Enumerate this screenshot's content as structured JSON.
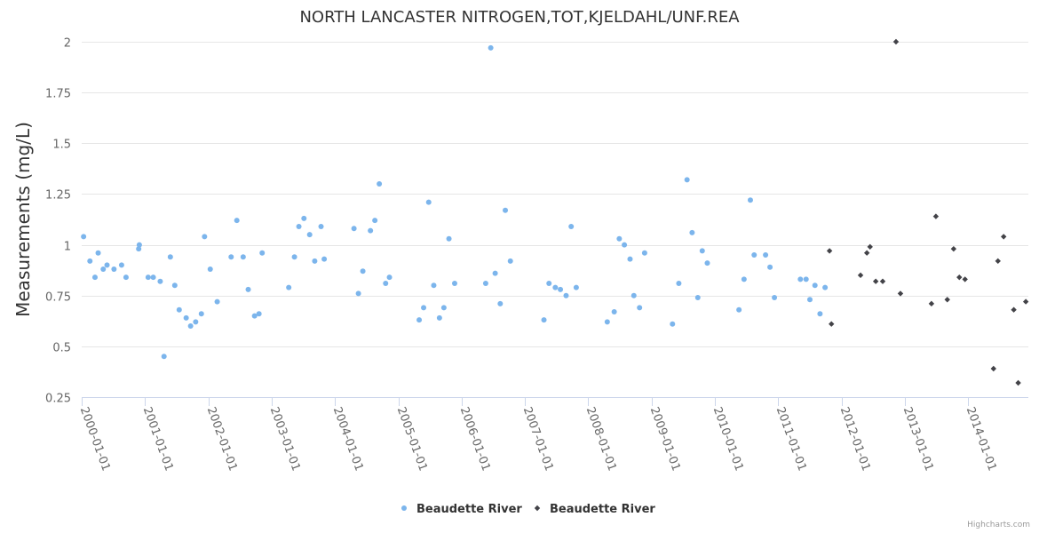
{
  "chart_data": {
    "type": "scatter",
    "title": "NORTH LANCASTER NITROGEN,TOT,KJELDAHL/UNF.REA",
    "ylabel": "Measurements (mg/L)",
    "xlabel": "",
    "ylim": [
      0.25,
      2.0
    ],
    "yticks": [
      0.25,
      0.5,
      0.75,
      1.0,
      1.25,
      1.5,
      1.75,
      2.0
    ],
    "ytick_labels": [
      "0.25",
      "0.5",
      "0.75",
      "1",
      "1.25",
      "1.5",
      "1.75",
      "2"
    ],
    "xlim": [
      2000.0,
      2014.95
    ],
    "xticks": [
      2000,
      2001,
      2002,
      2003,
      2004,
      2005,
      2006,
      2007,
      2008,
      2009,
      2010,
      2011,
      2012,
      2013,
      2014
    ],
    "xtick_labels": [
      "2000-01-01",
      "2001-01-01",
      "2002-01-01",
      "2003-01-01",
      "2004-01-01",
      "2005-01-01",
      "2006-01-01",
      "2007-01-01",
      "2008-01-01",
      "2009-01-01",
      "2010-01-01",
      "2011-01-01",
      "2012-01-01",
      "2013-01-01",
      "2014-01-01"
    ],
    "grid": true,
    "legend_position": "bottom-center",
    "series": [
      {
        "name": "Beaudette River",
        "marker": "circle",
        "color": "#7cb5ec",
        "points": [
          [
            2000.03,
            1.04
          ],
          [
            2000.13,
            0.92
          ],
          [
            2000.21,
            0.84
          ],
          [
            2000.26,
            0.96
          ],
          [
            2000.34,
            0.88
          ],
          [
            2000.4,
            0.9
          ],
          [
            2000.51,
            0.88
          ],
          [
            2000.63,
            0.9
          ],
          [
            2000.7,
            0.84
          ],
          [
            2000.9,
            0.98
          ],
          [
            2000.91,
            1.0
          ],
          [
            2001.05,
            0.84
          ],
          [
            2001.13,
            0.84
          ],
          [
            2001.24,
            0.82
          ],
          [
            2001.3,
            0.45
          ],
          [
            2001.4,
            0.94
          ],
          [
            2001.47,
            0.8
          ],
          [
            2001.54,
            0.68
          ],
          [
            2001.65,
            0.64
          ],
          [
            2001.72,
            0.6
          ],
          [
            2001.8,
            0.62
          ],
          [
            2001.89,
            0.66
          ],
          [
            2001.94,
            1.04
          ],
          [
            2002.03,
            0.88
          ],
          [
            2002.14,
            0.72
          ],
          [
            2002.36,
            0.94
          ],
          [
            2002.45,
            1.12
          ],
          [
            2002.55,
            0.94
          ],
          [
            2002.63,
            0.78
          ],
          [
            2002.73,
            0.65
          ],
          [
            2002.8,
            0.66
          ],
          [
            2002.85,
            0.96
          ],
          [
            2003.27,
            0.79
          ],
          [
            2003.36,
            0.94
          ],
          [
            2003.43,
            1.09
          ],
          [
            2003.51,
            1.13
          ],
          [
            2003.6,
            1.05
          ],
          [
            2003.68,
            0.92
          ],
          [
            2003.78,
            1.09
          ],
          [
            2003.83,
            0.93
          ],
          [
            2004.3,
            1.08
          ],
          [
            2004.37,
            0.76
          ],
          [
            2004.44,
            0.87
          ],
          [
            2004.56,
            1.07
          ],
          [
            2004.63,
            1.12
          ],
          [
            2004.7,
            1.3
          ],
          [
            2004.8,
            0.81
          ],
          [
            2004.86,
            0.84
          ],
          [
            2005.33,
            0.63
          ],
          [
            2005.4,
            0.69
          ],
          [
            2005.48,
            1.21
          ],
          [
            2005.56,
            0.8
          ],
          [
            2005.65,
            0.64
          ],
          [
            2005.72,
            0.69
          ],
          [
            2005.8,
            1.03
          ],
          [
            2005.89,
            0.81
          ],
          [
            2006.38,
            0.81
          ],
          [
            2006.46,
            1.97
          ],
          [
            2006.53,
            0.86
          ],
          [
            2006.61,
            0.71
          ],
          [
            2006.69,
            1.17
          ],
          [
            2006.77,
            0.92
          ],
          [
            2007.3,
            0.63
          ],
          [
            2007.38,
            0.81
          ],
          [
            2007.48,
            0.79
          ],
          [
            2007.56,
            0.78
          ],
          [
            2007.65,
            0.75
          ],
          [
            2007.73,
            1.09
          ],
          [
            2007.81,
            0.79
          ],
          [
            2008.3,
            0.62
          ],
          [
            2008.41,
            0.67
          ],
          [
            2008.49,
            1.03
          ],
          [
            2008.57,
            1.0
          ],
          [
            2008.66,
            0.93
          ],
          [
            2008.72,
            0.75
          ],
          [
            2008.81,
            0.69
          ],
          [
            2008.89,
            0.96
          ],
          [
            2009.33,
            0.61
          ],
          [
            2009.43,
            0.81
          ],
          [
            2009.56,
            1.32
          ],
          [
            2009.64,
            1.06
          ],
          [
            2009.73,
            0.74
          ],
          [
            2009.8,
            0.97
          ],
          [
            2009.88,
            0.91
          ],
          [
            2010.38,
            0.68
          ],
          [
            2010.46,
            0.83
          ],
          [
            2010.56,
            1.22
          ],
          [
            2010.62,
            0.95
          ],
          [
            2010.8,
            0.95
          ],
          [
            2010.87,
            0.89
          ],
          [
            2010.94,
            0.74
          ],
          [
            2011.35,
            0.83
          ],
          [
            2011.44,
            0.83
          ],
          [
            2011.5,
            0.73
          ],
          [
            2011.58,
            0.8
          ],
          [
            2011.66,
            0.66
          ],
          [
            2011.74,
            0.79
          ]
        ]
      },
      {
        "name": "Beaudette River",
        "marker": "diamond",
        "color": "#434348",
        "points": [
          [
            2011.81,
            0.97
          ],
          [
            2011.84,
            0.61
          ],
          [
            2012.3,
            0.85
          ],
          [
            2012.4,
            0.96
          ],
          [
            2012.45,
            0.99
          ],
          [
            2012.54,
            0.82
          ],
          [
            2012.65,
            0.82
          ],
          [
            2012.86,
            2.0
          ],
          [
            2012.93,
            0.76
          ],
          [
            2013.42,
            0.71
          ],
          [
            2013.49,
            1.14
          ],
          [
            2013.67,
            0.73
          ],
          [
            2013.77,
            0.98
          ],
          [
            2013.86,
            0.84
          ],
          [
            2013.95,
            0.83
          ],
          [
            2014.4,
            0.39
          ],
          [
            2014.47,
            0.92
          ],
          [
            2014.56,
            1.04
          ],
          [
            2014.72,
            0.68
          ],
          [
            2014.79,
            0.32
          ],
          [
            2014.91,
            0.72
          ]
        ]
      }
    ]
  },
  "credits": "Highcharts.com"
}
